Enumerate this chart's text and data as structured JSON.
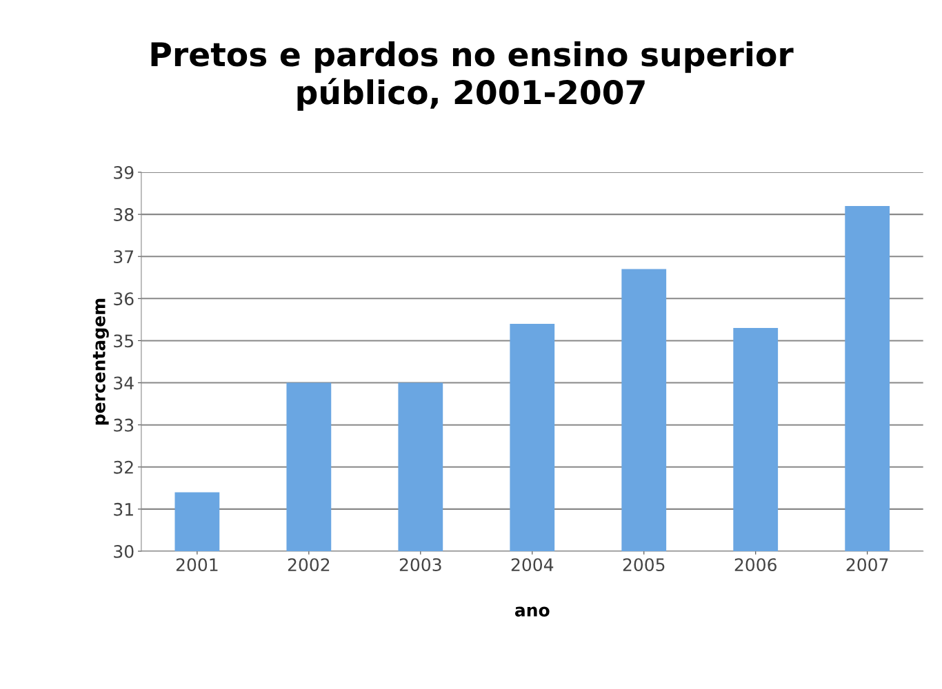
{
  "chart_data": {
    "type": "bar",
    "title": "Pretos e pardos no ensino superior\npúblico, 2001-2007",
    "xlabel": "ano",
    "ylabel": "percentagem",
    "categories": [
      "2001",
      "2002",
      "2003",
      "2004",
      "2005",
      "2006",
      "2007"
    ],
    "values": [
      31.4,
      34.0,
      34.0,
      35.4,
      36.7,
      35.3,
      38.2
    ],
    "color": "#6aa6e2",
    "ylim": [
      30,
      39
    ],
    "yticks": [
      30,
      31,
      32,
      33,
      34,
      35,
      36,
      37,
      38,
      39
    ],
    "grid": "y",
    "legend": false
  }
}
